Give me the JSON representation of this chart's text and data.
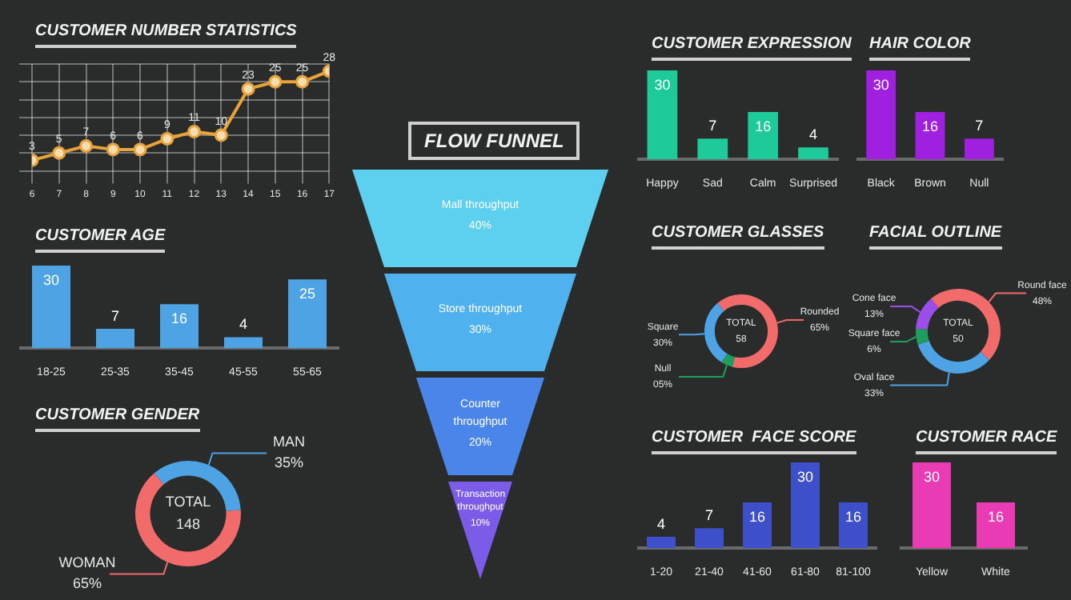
{
  "chart_data": [
    {
      "type": "line",
      "title": "CUSTOMER NUMBER STATISTICS",
      "x": [
        6,
        7,
        8,
        9,
        10,
        11,
        12,
        13,
        14,
        15,
        16,
        17
      ],
      "xticks": [
        6,
        7,
        8,
        9,
        10,
        11,
        12,
        13,
        14,
        15,
        16,
        17
      ],
      "xlim": [
        6,
        17
      ],
      "series": [
        {
          "color": "#e8a33a",
          "values": [
            3,
            5,
            7,
            6,
            6,
            9,
            11,
            10,
            23,
            25,
            25,
            28
          ]
        }
      ],
      "data_labels": true,
      "grid": true,
      "marker": "circle",
      "tick_labels": "x"
    },
    {
      "type": "bar",
      "title": "CUSTOMER AGE",
      "categories": [
        "18-25",
        "25-35",
        "35-45",
        "45-55",
        "55-65"
      ],
      "values": [
        30,
        7,
        16,
        4,
        25
      ],
      "color": "#4da3e3",
      "data_labels": true,
      "tick_labels": "x"
    },
    {
      "type": "donut",
      "title": "CUSTOMER GENDER",
      "categories": [
        "MAN",
        "WOMAN"
      ],
      "values": [
        35,
        65
      ],
      "value_labels": [
        "35%",
        "65%"
      ],
      "colors": [
        "#4da3e3",
        "#f26b6b"
      ],
      "annotations": [
        "TOTAL",
        "148"
      ]
    },
    {
      "type": "other",
      "title": "FLOW FUNNEL",
      "categories": [
        "Mall throughput",
        "Store throughput",
        "Counter throughput",
        "Transaction throughput"
      ],
      "values": [
        40,
        30,
        20,
        10
      ],
      "value_labels": [
        "40%",
        "30%",
        "20%",
        "10%"
      ],
      "colors": [
        "#5cd0ee",
        "#4fb2ef",
        "#4a86ea",
        "#7a5ce8"
      ]
    },
    {
      "type": "bar",
      "title": "CUSTOMER EXPRESSION",
      "categories": [
        "Happy",
        "Sad",
        "Calm",
        "Surprised"
      ],
      "values": [
        30,
        7,
        16,
        4
      ],
      "color": "#1ec99a",
      "data_labels": true,
      "tick_labels": "x"
    },
    {
      "type": "bar",
      "title": "HAIR COLOR",
      "categories": [
        "Black",
        "Brown",
        "Null"
      ],
      "values": [
        30,
        16,
        7
      ],
      "color": "#a020e0",
      "data_labels": true,
      "tick_labels": "x"
    },
    {
      "type": "donut",
      "title": "CUSTOMER GLASSES",
      "categories": [
        "Rounded",
        "Null",
        "Square"
      ],
      "values": [
        65,
        5,
        30
      ],
      "value_labels": [
        "65%",
        "05%",
        "30%"
      ],
      "colors": [
        "#f26b6b",
        "#1e9e5e",
        "#4da3e3"
      ],
      "annotations": [
        "TOTAL",
        "58"
      ]
    },
    {
      "type": "donut",
      "title": "FACIAL OUTLINE",
      "categories": [
        "Round face",
        "Oval face",
        "Square face",
        "Cone face"
      ],
      "values": [
        48,
        33,
        6,
        13
      ],
      "value_labels": [
        "48%",
        "33%",
        "6%",
        "13%"
      ],
      "colors": [
        "#f26b6b",
        "#4da3e3",
        "#1e9e5e",
        "#9b4fe8"
      ],
      "annotations": [
        "TOTAL",
        "50"
      ]
    },
    {
      "type": "bar",
      "title": "CUSTOMER  FACE SCORE",
      "categories": [
        "1-20",
        "21-40",
        "41-60",
        "61-80",
        "81-100"
      ],
      "values": [
        4,
        7,
        16,
        30,
        16
      ],
      "color": "#3d4fc9",
      "data_labels": true,
      "tick_labels": "x"
    },
    {
      "type": "bar",
      "title": "CUSTOMER RACE",
      "categories": [
        "Yellow",
        "White"
      ],
      "values": [
        30,
        16
      ],
      "color": "#e93bb3",
      "data_labels": true,
      "tick_labels": "x"
    }
  ]
}
